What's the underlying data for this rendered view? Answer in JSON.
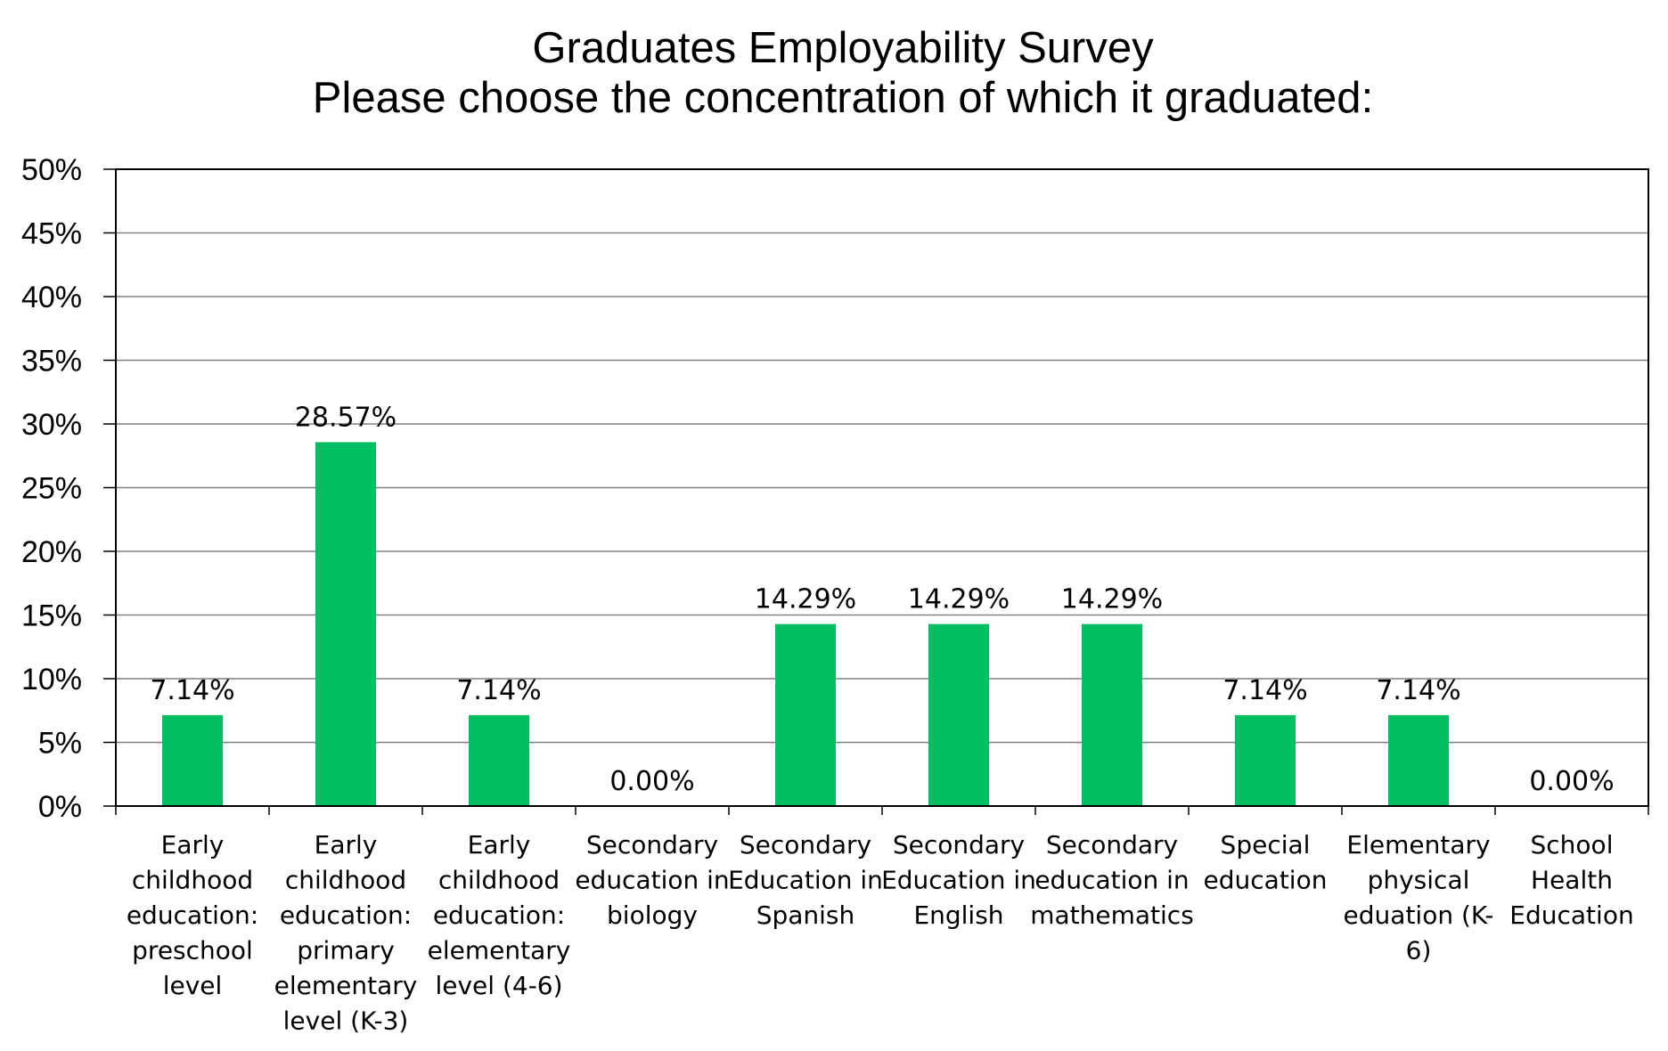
{
  "chart_data": {
    "type": "bar",
    "title": "Graduates Employability Survey",
    "subtitle": "Please choose the concentration of which it graduated:",
    "categories": [
      [
        "Early",
        "childhood",
        "education:",
        "preschool",
        "level"
      ],
      [
        "Early",
        "childhood",
        "education:",
        "primary",
        "elementary",
        "level (K-3)"
      ],
      [
        "Early",
        "childhood",
        "education:",
        "elementary",
        "level (4-6)"
      ],
      [
        "Secondary",
        "education in",
        "biology"
      ],
      [
        "Secondary",
        "Education in",
        "Spanish"
      ],
      [
        "Secondary",
        "Education in",
        "English"
      ],
      [
        "Secondary",
        "education in",
        "mathematics"
      ],
      [
        "Special",
        "education"
      ],
      [
        "Elementary",
        "physical",
        "eduation (K-",
        "6)"
      ],
      [
        "School",
        "Health",
        "Education"
      ]
    ],
    "values": [
      7.14,
      28.57,
      7.14,
      0.0,
      14.29,
      14.29,
      14.29,
      7.14,
      7.14,
      0.0
    ],
    "data_labels": [
      "7.14%",
      "28.57%",
      "7.14%",
      "0.00%",
      "14.29%",
      "14.29%",
      "14.29%",
      "7.14%",
      "7.14%",
      "0.00%"
    ],
    "yticks": [
      "0%",
      "5%",
      "10%",
      "15%",
      "20%",
      "25%",
      "30%",
      "35%",
      "40%",
      "45%",
      "50%"
    ],
    "ylim": [
      0,
      50
    ],
    "xlabel": "",
    "ylabel": "",
    "grid": true,
    "bar_color": "#00BF63",
    "grid_color": "#808080",
    "axis_color": "#000000"
  }
}
